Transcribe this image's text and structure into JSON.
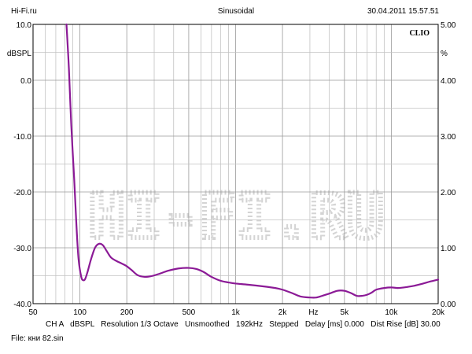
{
  "header": {
    "site": "Hi-Fi.ru",
    "mode": "Sinusoidal",
    "timestamp": "30.04.2011 15.57.51"
  },
  "brand": "CLIO",
  "watermark": "HI-FI.RU",
  "footer": {
    "channel": "CH A",
    "unit": "dBSPL",
    "resolution": "Resolution 1/3 Octave",
    "smoothing": "Unsmoothed",
    "rate": "192kHz",
    "stepping": "Stepped",
    "delay": "Delay [ms] 0.000",
    "dist_rise": "Dist Rise [dB] 30.00",
    "file": "File: кни 82.sin"
  },
  "chart_data": {
    "type": "line",
    "xscale": "log",
    "xlim": [
      50,
      20000
    ],
    "ylim_left": [
      -40,
      10
    ],
    "ylim_right": [
      0,
      5
    ],
    "x_tick_values": [
      50,
      100,
      200,
      500,
      1000,
      2000,
      5000,
      10000,
      20000
    ],
    "x_tick_labels": [
      "50",
      "100",
      "200",
      "500",
      "1k",
      "2k",
      "5k",
      "10k",
      "20k"
    ],
    "x_unit_label": "Hz",
    "y_left_ticks": [
      10,
      0,
      -10,
      -20,
      -30,
      -40
    ],
    "y_left_labels": [
      "10.0",
      "0.0",
      "-10.0",
      "-20.0",
      "-30.0",
      "-40.0"
    ],
    "y_left_unit": "dBSPL",
    "y_right_ticks": [
      5,
      4,
      3,
      2,
      1,
      0
    ],
    "y_right_labels": [
      "5.00",
      "4.00",
      "3.00",
      "2.00",
      "1.00",
      "0.00"
    ],
    "y_right_unit": "%",
    "grid": true,
    "series": [
      {
        "color": "#8b1a96",
        "axis": "left",
        "x": [
          82,
          85,
          88,
          92,
          95,
          98,
          102,
          105,
          108,
          112,
          118,
          125,
          132,
          140,
          148,
          158,
          170,
          185,
          200,
          215,
          235,
          260,
          285,
          320,
          370,
          430,
          500,
          560,
          620,
          700,
          800,
          900,
          1000,
          1200,
          1500,
          1800,
          2000,
          2300,
          2600,
          3000,
          3300,
          3600,
          4000,
          4500,
          5000,
          5500,
          6000,
          6500,
          7000,
          7500,
          8000,
          9000,
          10000,
          11000,
          12000,
          14000,
          16000,
          18000,
          20000
        ],
        "y": [
          10,
          2,
          -8,
          -18,
          -26,
          -32,
          -35.2,
          -35.8,
          -35.6,
          -34.3,
          -32,
          -30,
          -29.3,
          -29.5,
          -30.5,
          -31.7,
          -32.3,
          -32.8,
          -33.3,
          -34,
          -34.9,
          -35.2,
          -35.1,
          -34.7,
          -34.1,
          -33.7,
          -33.6,
          -33.8,
          -34.3,
          -35.2,
          -35.9,
          -36.2,
          -36.4,
          -36.6,
          -36.9,
          -37.2,
          -37.5,
          -38.1,
          -38.7,
          -38.9,
          -38.9,
          -38.6,
          -38.2,
          -37.7,
          -37.7,
          -38.1,
          -38.6,
          -38.6,
          -38.4,
          -38,
          -37.5,
          -37.2,
          -37.1,
          -37.2,
          -37.1,
          -36.8,
          -36.4,
          -36,
          -35.7
        ]
      }
    ]
  }
}
